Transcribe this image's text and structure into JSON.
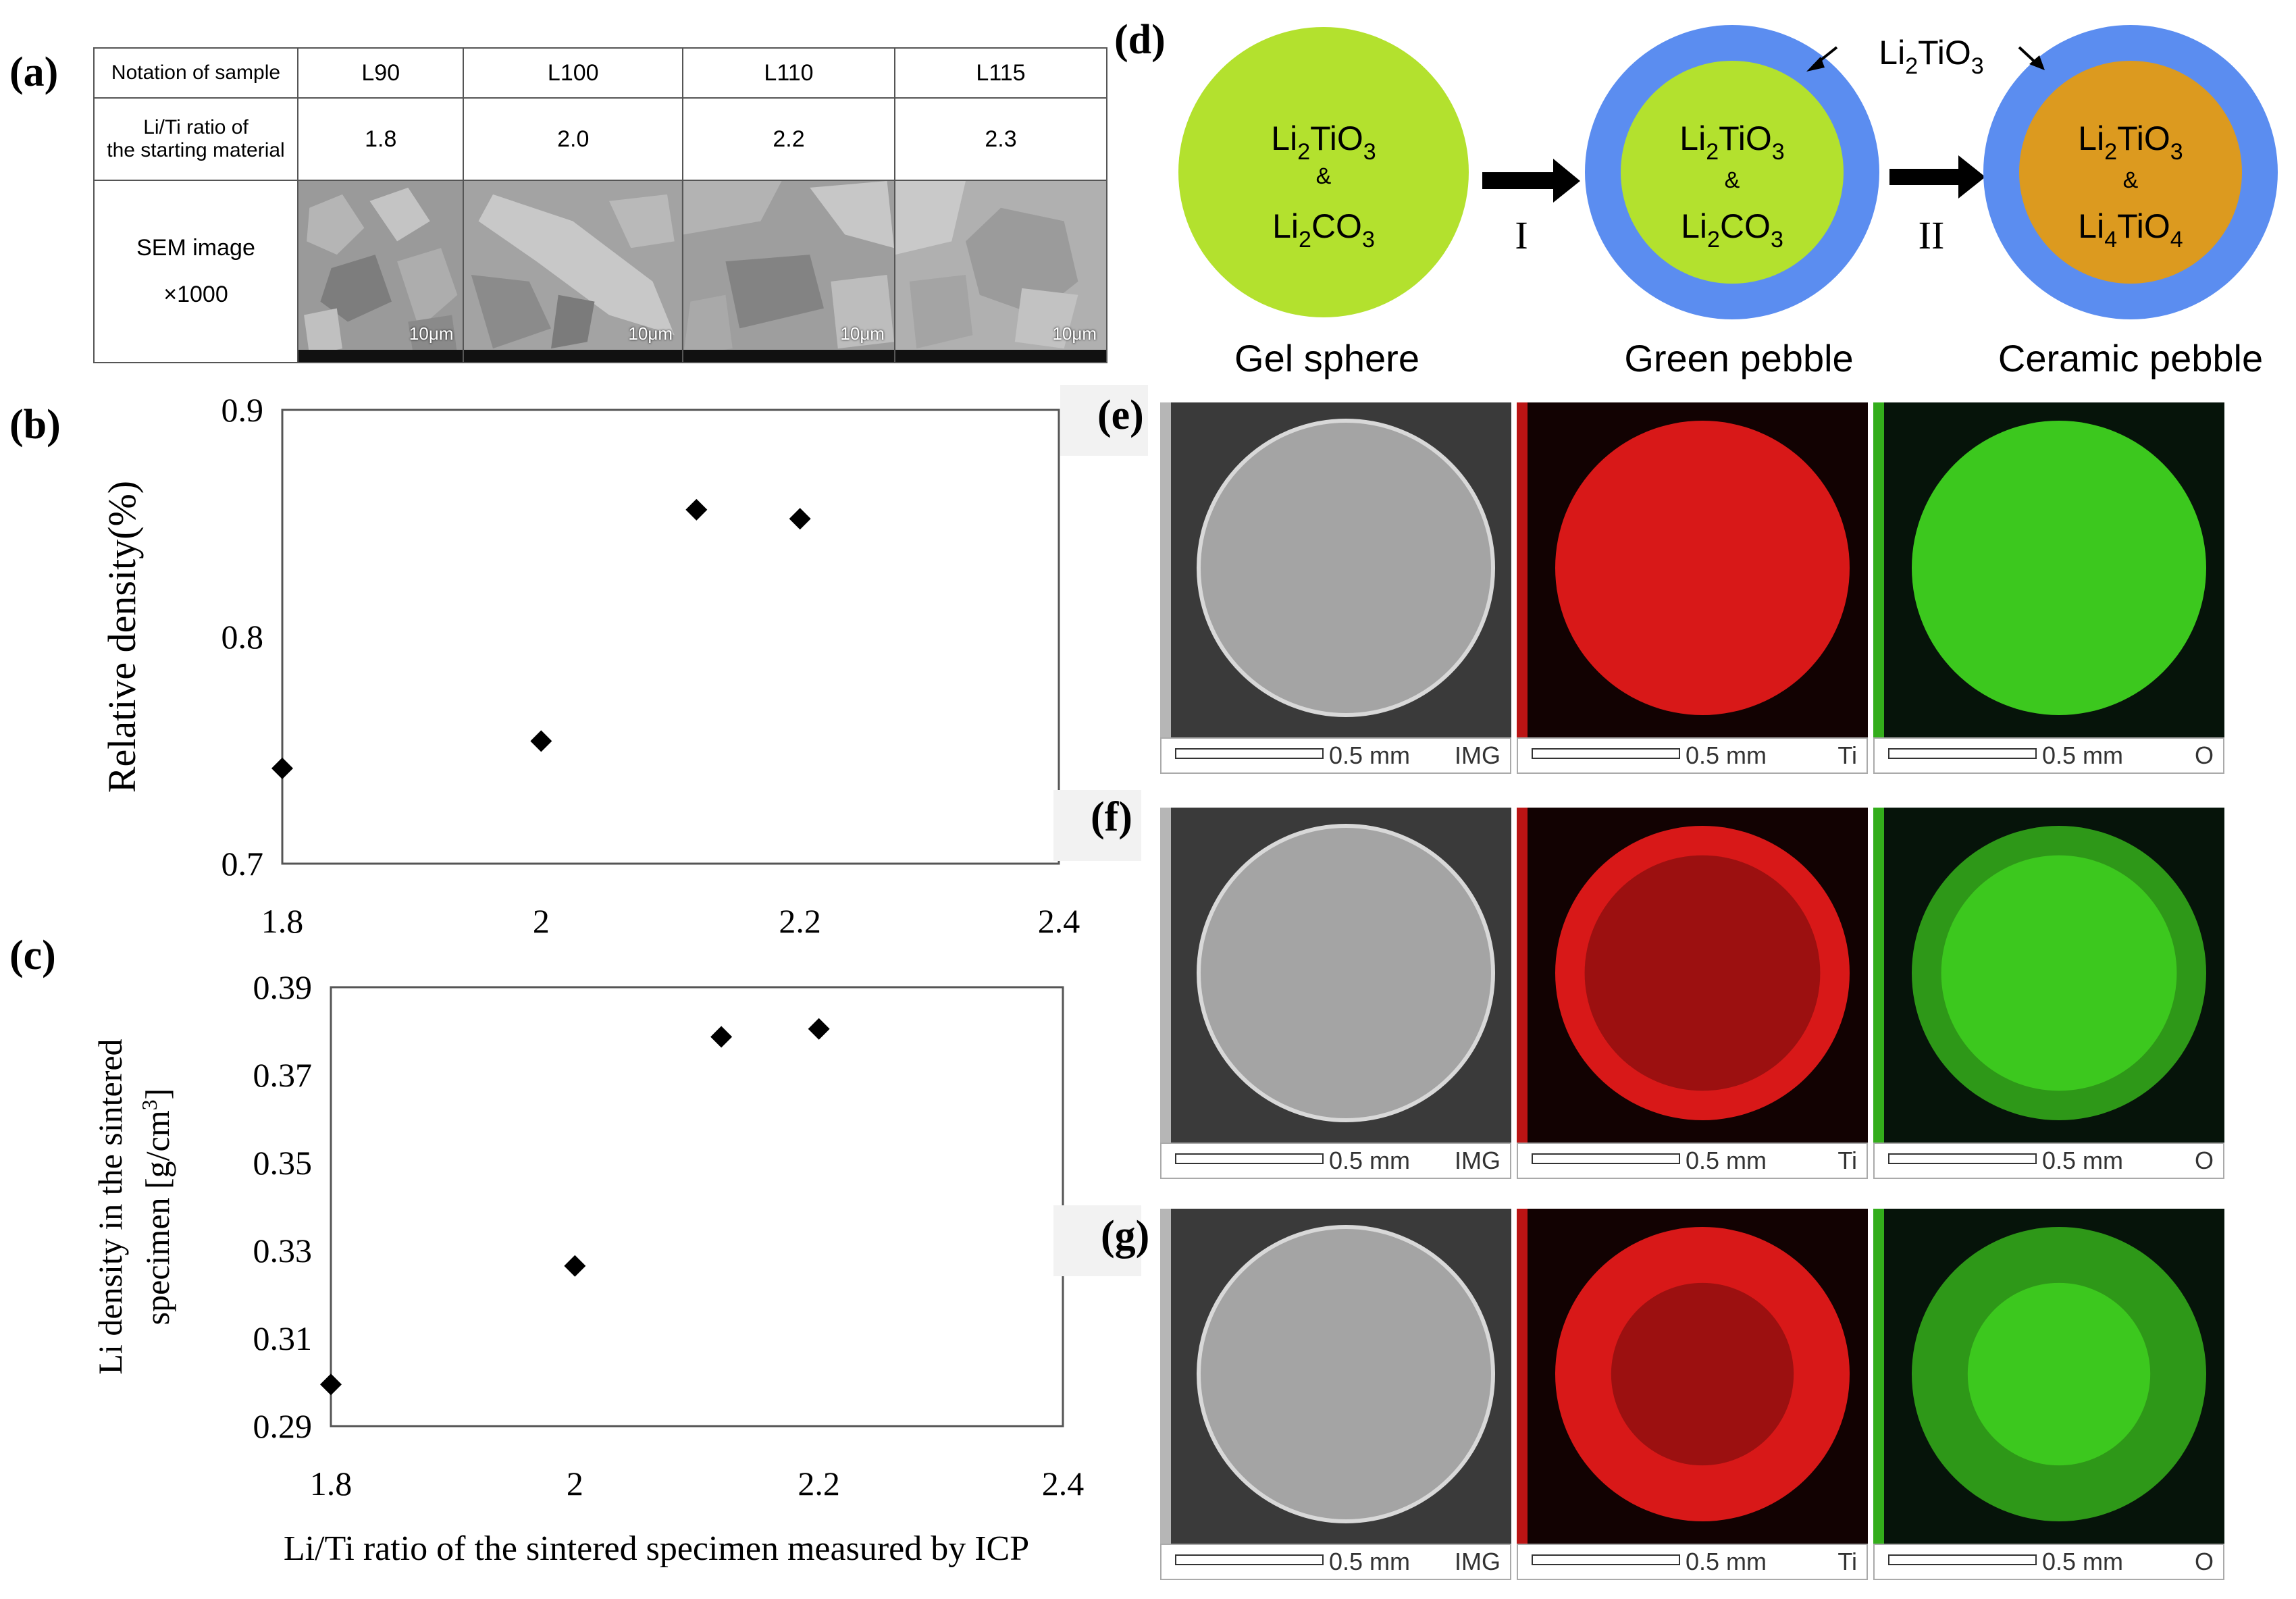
{
  "panels": {
    "a": "(a)",
    "b": "(b)",
    "c": "(c)",
    "d": "(d)",
    "e": "(e)",
    "f": "(f)",
    "g": "(g)"
  },
  "table_a": {
    "row_headers": [
      "Notation of sample",
      "Li/Ti ratio of the starting material",
      "SEM image"
    ],
    "row_header_line2": "the starting material",
    "row_header_line1": "Li/Ti ratio of",
    "sem_magnification": "×1000",
    "samples": [
      "L90",
      "L100",
      "L110",
      "L115"
    ],
    "li_ti_ratios": [
      "1.8",
      "2.0",
      "2.2",
      "2.3"
    ],
    "scale_label": "10μm"
  },
  "schematic_d": {
    "spheres": [
      {
        "caption": "Gel sphere",
        "line1": "Li",
        "sub1": "2",
        "mid1": "TiO",
        "sub1b": "3",
        "amp": "&",
        "line2": "Li",
        "sub2": "2",
        "mid2": "CO",
        "sub2b": "3"
      },
      {
        "caption": "Green pebble",
        "line1": "Li",
        "sub1": "2",
        "mid1": "TiO",
        "sub1b": "3",
        "amp": "&",
        "line2": "Li",
        "sub2": "2",
        "mid2": "CO",
        "sub2b": "3"
      },
      {
        "caption": "Ceramic pebble",
        "line1": "Li",
        "sub1": "2",
        "mid1": "TiO",
        "sub1b": "3",
        "amp": "&",
        "line2": "Li",
        "sub2": "4",
        "mid2": "TiO",
        "sub2b": "4"
      }
    ],
    "step1": "I",
    "step2": "II",
    "shell_label": {
      "a": "Li",
      "sub": "2",
      "b": "TiO",
      "sub2": "3"
    },
    "colors": {
      "core_green": "#b3e12e",
      "shell_blue": "#5b8df0",
      "core_orange": "#dc9a1f"
    }
  },
  "eds": {
    "strips": [
      {
        "scale": "0.5 mm",
        "tag": "IMG"
      },
      {
        "scale": "0.5 mm",
        "tag": "Ti"
      },
      {
        "scale": "0.5 mm",
        "tag": "O"
      }
    ],
    "colors": {
      "ti": "#d81818",
      "o": "#3cc81e"
    }
  },
  "chart_data": [
    {
      "type": "scatter",
      "panel": "(b)",
      "ylabel": "Relative density(%)",
      "xlabel": "",
      "xlim": [
        1.8,
        2.4
      ],
      "ylim": [
        0.7,
        0.9
      ],
      "xticks": [
        "1.8",
        "2",
        "2.2",
        "2.4"
      ],
      "yticks": [
        "0.7",
        "0.8",
        "0.9"
      ],
      "x": [
        1.8,
        2.0,
        2.12,
        2.2
      ],
      "y": [
        0.742,
        0.754,
        0.856,
        0.852
      ]
    },
    {
      "type": "scatter",
      "panel": "(c)",
      "ylabel_line1": "Li density in the sintered",
      "ylabel_line2": "specimen  [g/cm",
      "ylabel_sup": "3",
      "ylabel_end": "]",
      "xlabel": "Li/Ti ratio of the sintered specimen measured by ICP",
      "xlim": [
        1.8,
        2.4
      ],
      "ylim": [
        0.29,
        0.39
      ],
      "xticks": [
        "1.8",
        "2",
        "2.2",
        "2.4"
      ],
      "yticks": [
        "0.29",
        "0.31",
        "0.33",
        "0.35",
        "0.37",
        "0.39"
      ],
      "x": [
        1.8,
        2.0,
        2.12,
        2.2
      ],
      "y": [
        0.2995,
        0.3265,
        0.3787,
        0.3805
      ]
    }
  ]
}
